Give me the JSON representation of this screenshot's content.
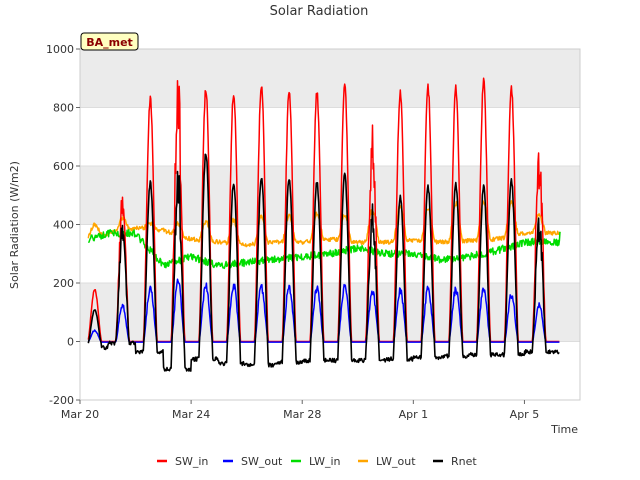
{
  "chart_data": {
    "type": "line",
    "title": "Solar Radiation",
    "xlabel": "Time",
    "ylabel": "Solar Radiation (W/m2)",
    "badge": "BA_met",
    "ylim": [
      -200,
      1000
    ],
    "yticks": [
      -200,
      0,
      200,
      400,
      600,
      800,
      1000
    ],
    "xlim_days": [
      0,
      18
    ],
    "xticks": [
      {
        "day": 0,
        "label": "Mar 20"
      },
      {
        "day": 4,
        "label": "Mar 24"
      },
      {
        "day": 8,
        "label": "Mar 28"
      },
      {
        "day": 12,
        "label": "Apr 1"
      },
      {
        "day": 16,
        "label": "Apr 5"
      }
    ],
    "band_color": "#ebebeb",
    "series": [
      {
        "name": "SW_in",
        "color": "#ff0000"
      },
      {
        "name": "SW_out",
        "color": "#0000ff"
      },
      {
        "name": "LW_in",
        "color": "#00dd00"
      },
      {
        "name": "LW_out",
        "color": "#ffa500"
      },
      {
        "name": "Rnet",
        "color": "#000000"
      }
    ],
    "daily": {
      "day_start": 0.3,
      "sw_in_peak": [
        180,
        510,
        840,
        920,
        870,
        860,
        890,
        870,
        860,
        880,
        740,
        860,
        880,
        880,
        900,
        880,
        680
      ],
      "sw_out_peak": [
        40,
        130,
        190,
        210,
        200,
        200,
        195,
        195,
        190,
        195,
        175,
        185,
        185,
        185,
        185,
        165,
        130
      ],
      "rnet_peak": [
        110,
        410,
        550,
        600,
        650,
        550,
        570,
        565,
        550,
        575,
        470,
        500,
        535,
        545,
        535,
        560,
        445
      ],
      "rnet_night": [
        -20,
        -5,
        -35,
        -95,
        -60,
        -75,
        -80,
        -70,
        -65,
        -65,
        -65,
        -60,
        -55,
        -50,
        -45,
        -45,
        -35
      ],
      "lw_in_level": [
        340,
        370,
        370,
        260,
        290,
        260,
        270,
        280,
        290,
        300,
        320,
        300,
        300,
        280,
        290,
        310,
        340
      ],
      "lw_out_night": [
        350,
        368,
        390,
        380,
        350,
        340,
        330,
        340,
        340,
        350,
        340,
        340,
        345,
        340,
        345,
        350,
        370
      ],
      "lw_out_day": [
        390,
        410,
        410,
        420,
        415,
        420,
        425,
        430,
        435,
        440,
        450,
        460,
        455,
        470,
        475,
        465,
        430
      ],
      "lw_end": 375
    }
  }
}
